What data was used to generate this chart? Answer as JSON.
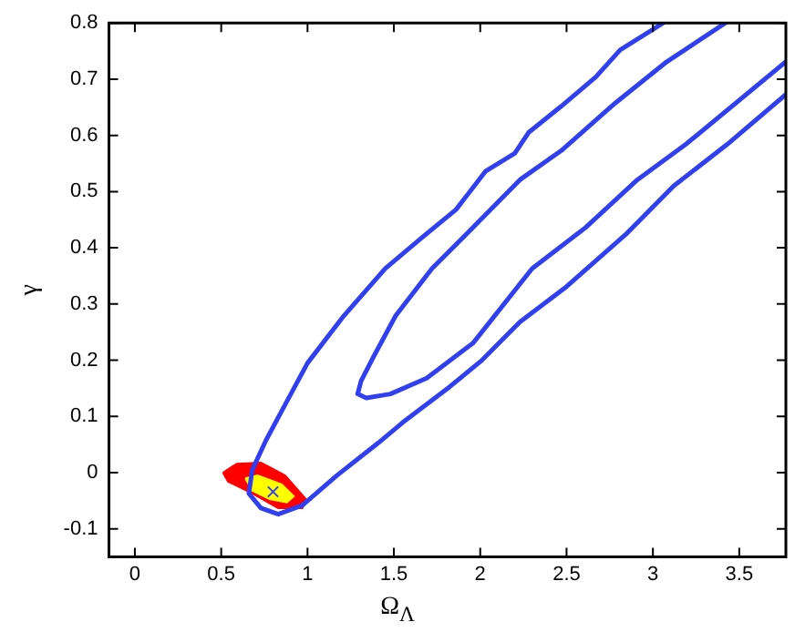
{
  "chart_data": {
    "type": "line",
    "xlabel": "Ω$_{Λ}$",
    "ylabel": "γ",
    "xlim": [
      -0.15,
      3.77
    ],
    "ylim": [
      -0.15,
      0.8
    ],
    "xticks": [
      0,
      0.5,
      1,
      1.5,
      2,
      2.5,
      3,
      3.5
    ],
    "yticks": [
      -0.1,
      0,
      0.1,
      0.2,
      0.3,
      0.4,
      0.5,
      0.6,
      0.7,
      0.8
    ],
    "grid": false,
    "legend": false,
    "line_style": "solid",
    "series": [
      {
        "type": "area",
        "color": "#ff0000",
        "x": [
          0.51,
          0.59,
          0.73,
          0.87,
          0.99,
          0.97,
          0.83,
          0.68,
          0.54,
          0.51
        ],
        "values": [
          0.0,
          0.016,
          0.018,
          -0.005,
          -0.047,
          -0.063,
          -0.063,
          -0.037,
          -0.016,
          0.0
        ]
      },
      {
        "type": "area",
        "color": "#ffff00",
        "x": [
          0.64,
          0.71,
          0.85,
          0.92,
          0.88,
          0.78,
          0.68,
          0.64
        ],
        "values": [
          -0.01,
          -0.005,
          -0.021,
          -0.042,
          -0.053,
          -0.047,
          -0.032,
          -0.01
        ]
      },
      {
        "color": "#3040f0",
        "x": [
          3.06,
          2.81,
          2.67,
          2.47,
          2.28,
          2.2,
          2.03,
          1.86,
          1.65,
          1.45,
          1.21,
          1.0,
          0.87,
          0.76,
          0.68,
          0.66,
          0.73,
          0.83,
          0.97,
          1.17,
          1.41,
          1.55,
          1.82,
          2.01,
          2.23,
          2.5,
          2.85,
          3.12,
          3.43,
          3.77
        ],
        "values": [
          0.8,
          0.752,
          0.704,
          0.652,
          0.605,
          0.568,
          0.536,
          0.468,
          0.415,
          0.363,
          0.279,
          0.195,
          0.121,
          0.058,
          0.005,
          -0.037,
          -0.063,
          -0.074,
          -0.058,
          -0.005,
          0.053,
          0.089,
          0.152,
          0.2,
          0.268,
          0.331,
          0.426,
          0.51,
          0.584,
          0.673
        ]
      },
      {
        "color": "#3040f0",
        "x": [
          3.42,
          3.08,
          2.78,
          2.47,
          2.23,
          1.89,
          1.72,
          1.51,
          1.38,
          1.31,
          1.29,
          1.34,
          1.48,
          1.69,
          1.96,
          2.3,
          2.61,
          2.91,
          3.19,
          3.77
        ],
        "values": [
          0.8,
          0.731,
          0.657,
          0.573,
          0.521,
          0.415,
          0.363,
          0.279,
          0.205,
          0.163,
          0.14,
          0.133,
          0.14,
          0.168,
          0.231,
          0.363,
          0.436,
          0.521,
          0.584,
          0.731
        ]
      },
      {
        "type": "scatter",
        "color": "#3040f0",
        "marker": "cross",
        "x": [
          0.8
        ],
        "values": [
          -0.034
        ]
      }
    ]
  }
}
